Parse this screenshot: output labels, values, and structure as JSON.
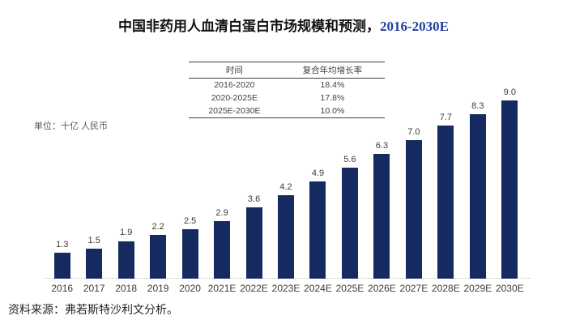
{
  "title": {
    "main": "中国非药用人血清白蛋白市场规模和预测，",
    "range": "2016-2030E"
  },
  "unit_label": "单位：十亿 人民币",
  "cagr_table": {
    "headers": [
      "时间",
      "复合年均增长率"
    ],
    "rows": [
      {
        "period": "2016-2020",
        "cagr": "18.4%"
      },
      {
        "period": "2020-2025E",
        "cagr": "17.8%"
      },
      {
        "period": "2025E-2030E",
        "cagr": "10.0%"
      }
    ]
  },
  "chart_data": {
    "type": "bar",
    "title": "中国非药用人血清白蛋白市场规模和预测，2016-2030E",
    "categories": [
      "2016",
      "2017",
      "2018",
      "2019",
      "2020",
      "2021E",
      "2022E",
      "2023E",
      "2024E",
      "2025E",
      "2026E",
      "2027E",
      "2028E",
      "2029E",
      "2030E"
    ],
    "values": [
      1.3,
      1.5,
      1.9,
      2.2,
      2.5,
      2.9,
      3.6,
      4.2,
      4.9,
      5.6,
      6.3,
      7.0,
      7.7,
      8.3,
      9.0
    ],
    "xlabel": "",
    "ylabel": "单位：十亿 人民币",
    "ylim": [
      0,
      9.5
    ],
    "grid": false,
    "legend": "none",
    "data_labels": true,
    "bar_color": "#152a5e"
  },
  "source": "资料来源：弗若斯特沙利文分析。",
  "colors": {
    "bar": "#152a5e",
    "title_accent": "#2140a0",
    "axis_text": "#3b3b3b",
    "muted_text": "#595959",
    "table_border": "#404040"
  }
}
